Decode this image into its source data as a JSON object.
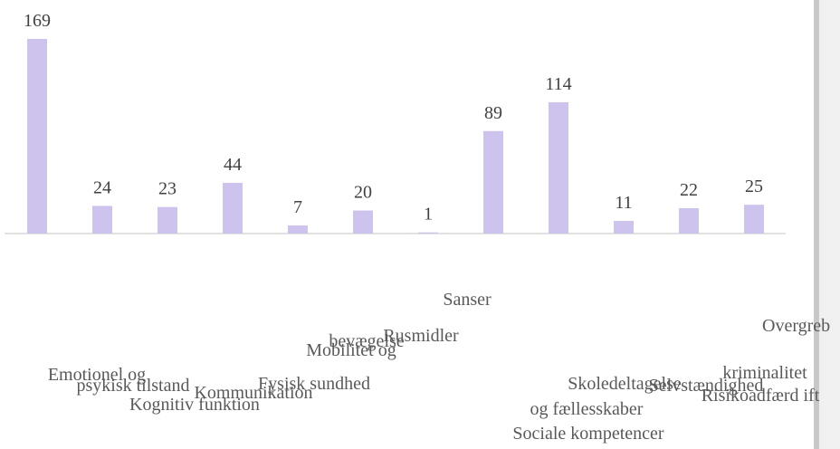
{
  "chart_data": {
    "type": "bar",
    "categories": [
      [
        "Emotionel og",
        "psykisk tilstand"
      ],
      [
        "Kognitiv funktion"
      ],
      [
        "Kommunikation"
      ],
      [
        "Fysisk sundhed"
      ],
      [
        "Mobilitet og",
        "bevægelse"
      ],
      [
        "Rusmidler"
      ],
      [
        "Sanser"
      ],
      [
        "Sociale kompetencer",
        "og fællesskaber"
      ],
      [
        "Skoledeltagelse"
      ],
      [
        "Selvstændighed"
      ],
      [
        "Risikoadfærd ift",
        "kriminalitet"
      ],
      [
        "Overgreb"
      ]
    ],
    "values": [
      169,
      24,
      23,
      44,
      7,
      20,
      1,
      89,
      114,
      11,
      22,
      25
    ],
    "color": "#cdc3ed",
    "ylim": [
      0,
      180
    ]
  }
}
